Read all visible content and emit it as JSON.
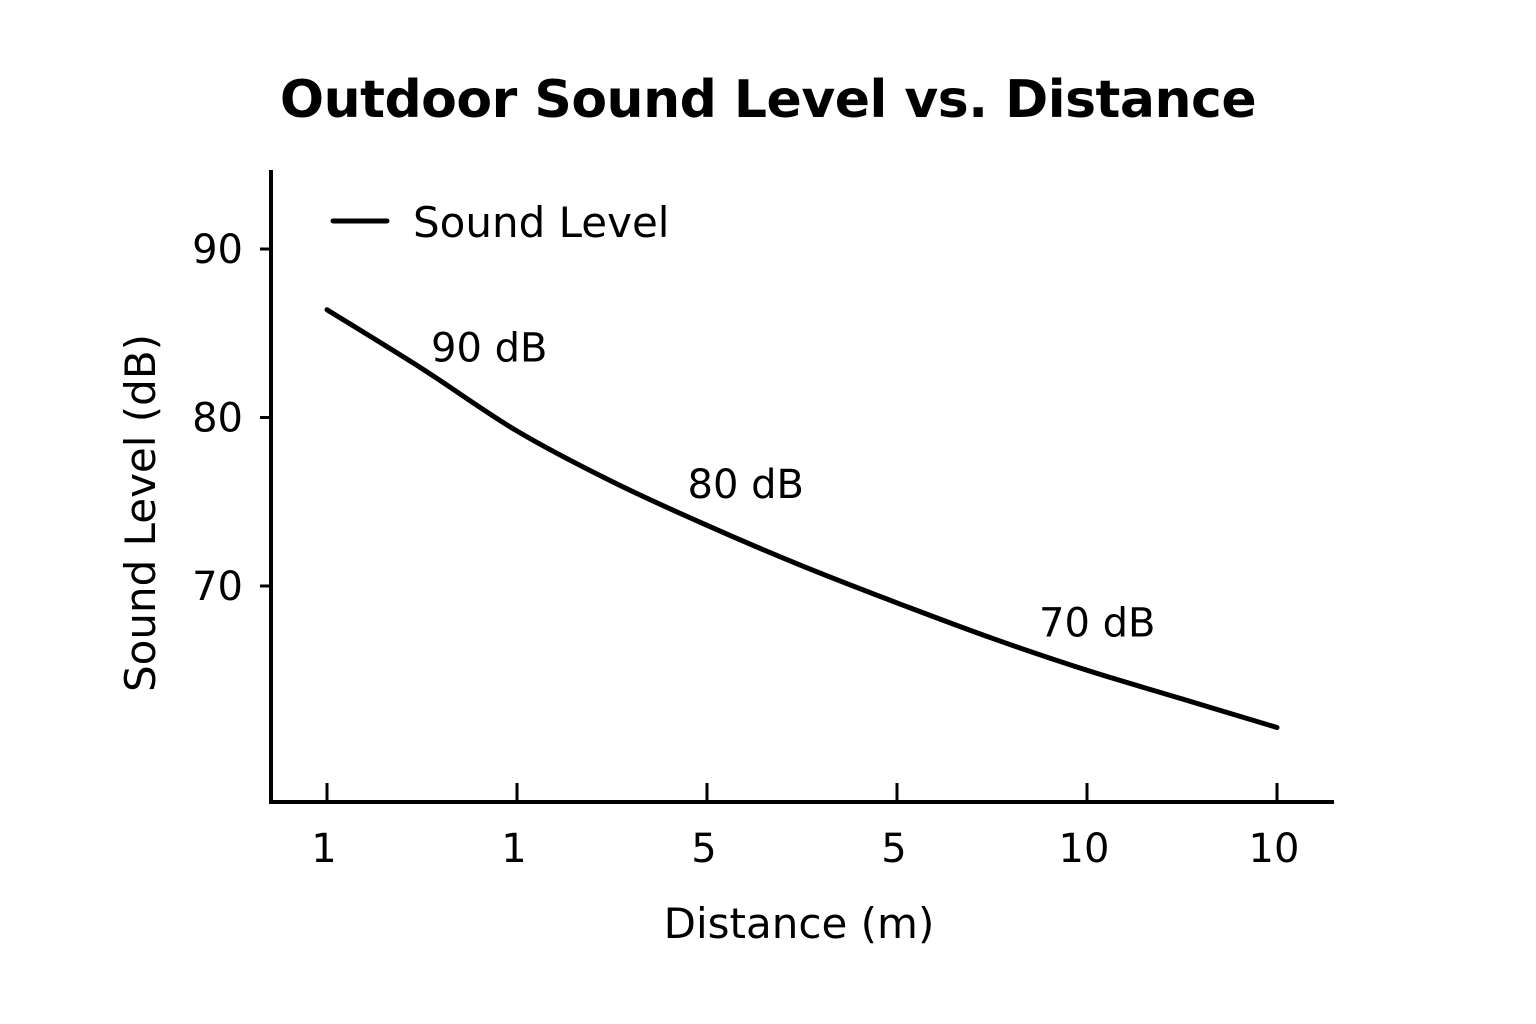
{
  "chart_data": {
    "type": "line",
    "title": "Outdoor Sound Level vs. Distance",
    "xlabel": "Distance (m)",
    "ylabel": "Sound Level (dB)",
    "x_tick_labels": [
      "1",
      "1",
      "5",
      "5",
      "10",
      "10"
    ],
    "y_ticks": [
      70,
      80,
      90
    ],
    "ylim": [
      58.8,
      94.5
    ],
    "x_range_in_tick_index": [
      0,
      5.3
    ],
    "grid": false,
    "legend": {
      "position": "top-left",
      "entries": [
        "Sound Level"
      ]
    },
    "series": [
      {
        "name": "Sound Level",
        "color": "#000000",
        "x": [
          0,
          0.5,
          1,
          1.5,
          2,
          2.5,
          3,
          3.5,
          4,
          4.5,
          5
        ],
        "y": [
          86.4,
          82.9,
          79.2,
          76.2,
          73.6,
          71.2,
          69.0,
          66.9,
          65.0,
          63.3,
          61.6
        ]
      }
    ],
    "annotations": [
      {
        "text": "90 dB",
        "x": 0.5,
        "y": 82.9
      },
      {
        "text": "80 dB",
        "x": 1.85,
        "y": 74.8
      },
      {
        "text": "70 dB",
        "x": 3.7,
        "y": 66.6
      }
    ]
  }
}
